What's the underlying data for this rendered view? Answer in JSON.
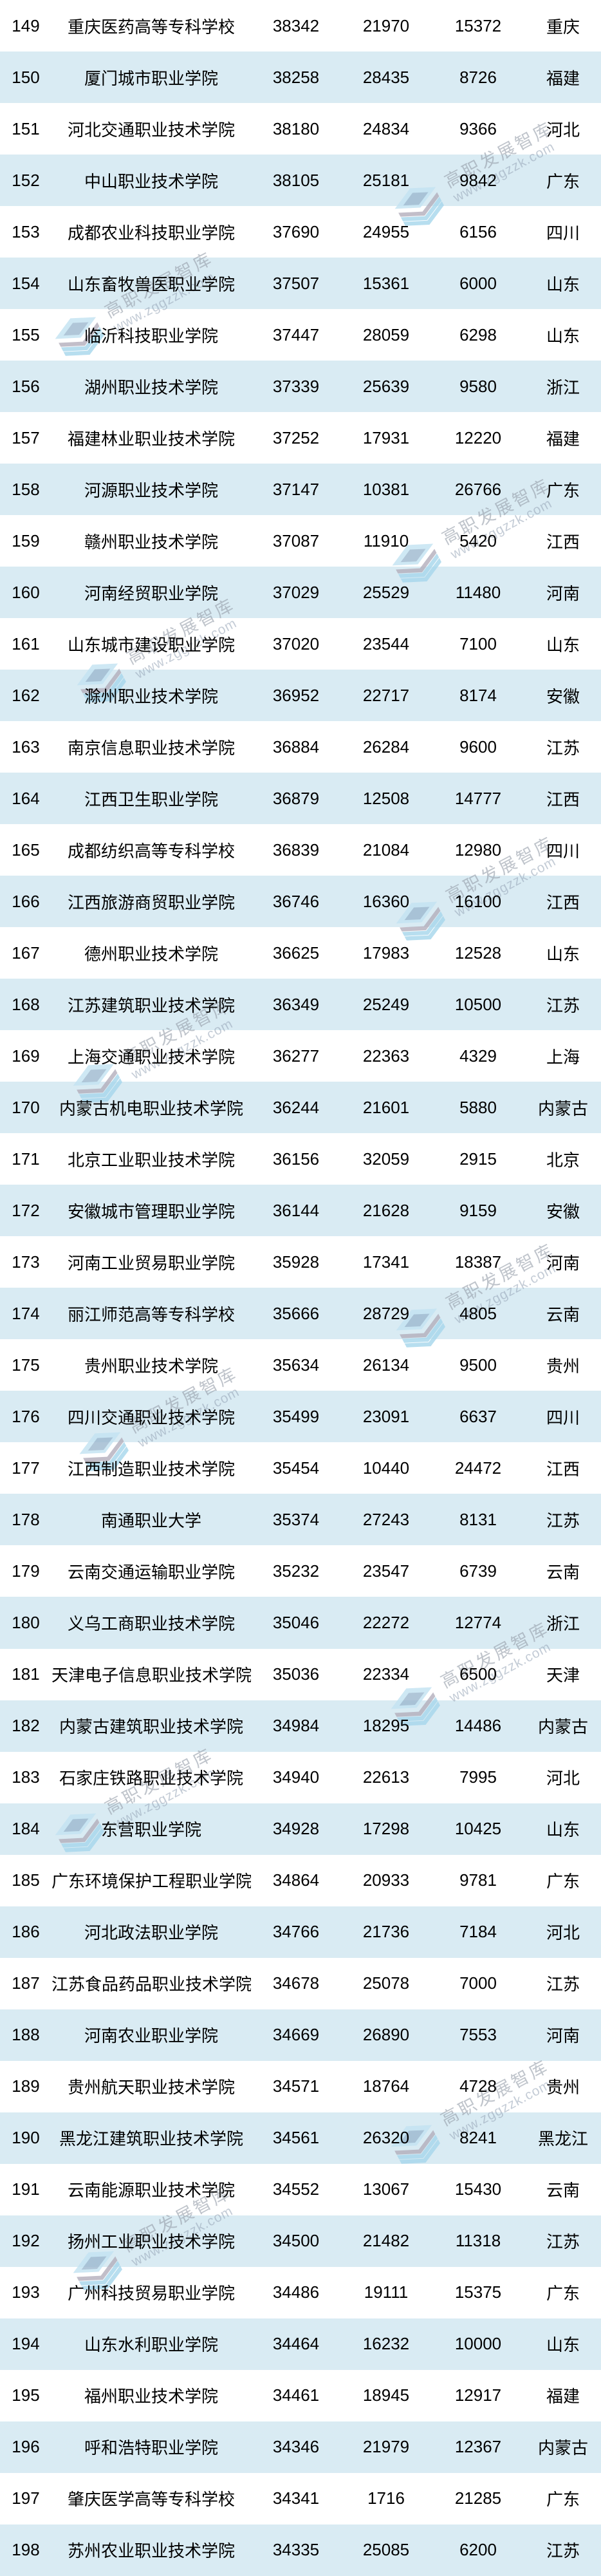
{
  "watermark": {
    "brand": "高职发展智库",
    "url": "www.zggzzk.com"
  },
  "colors": {
    "row_base": "#ffffff",
    "row_alt": "#d9ebf3",
    "text": "#000000",
    "watermark_text": "#949ca8",
    "logo_blue_light": "#c3e3f2",
    "logo_blue": "#a6d6ec",
    "logo_gray": "#b3aebc"
  },
  "table": {
    "column_keys": [
      "rank",
      "school",
      "value1",
      "value2",
      "value3",
      "province"
    ],
    "rows": [
      [
        "149",
        "重庆医药高等专科学校",
        "38342",
        "21970",
        "15372",
        "重庆"
      ],
      [
        "150",
        "厦门城市职业学院",
        "38258",
        "28435",
        "8726",
        "福建"
      ],
      [
        "151",
        "河北交通职业技术学院",
        "38180",
        "24834",
        "9366",
        "河北"
      ],
      [
        "152",
        "中山职业技术学院",
        "38105",
        "25181",
        "9842",
        "广东"
      ],
      [
        "153",
        "成都农业科技职业学院",
        "37690",
        "24955",
        "6156",
        "四川"
      ],
      [
        "154",
        "山东畜牧兽医职业学院",
        "37507",
        "15361",
        "6000",
        "山东"
      ],
      [
        "155",
        "临沂科技职业学院",
        "37447",
        "28059",
        "6298",
        "山东"
      ],
      [
        "156",
        "湖州职业技术学院",
        "37339",
        "25639",
        "9580",
        "浙江"
      ],
      [
        "157",
        "福建林业职业技术学院",
        "37252",
        "17931",
        "12220",
        "福建"
      ],
      [
        "158",
        "河源职业技术学院",
        "37147",
        "10381",
        "26766",
        "广东"
      ],
      [
        "159",
        "赣州职业技术学院",
        "37087",
        "11910",
        "5420",
        "江西"
      ],
      [
        "160",
        "河南经贸职业学院",
        "37029",
        "25529",
        "11480",
        "河南"
      ],
      [
        "161",
        "山东城市建设职业学院",
        "37020",
        "23544",
        "7100",
        "山东"
      ],
      [
        "162",
        "滁州职业技术学院",
        "36952",
        "22717",
        "8174",
        "安徽"
      ],
      [
        "163",
        "南京信息职业技术学院",
        "36884",
        "26284",
        "9600",
        "江苏"
      ],
      [
        "164",
        "江西卫生职业学院",
        "36879",
        "12508",
        "14777",
        "江西"
      ],
      [
        "165",
        "成都纺织高等专科学校",
        "36839",
        "21084",
        "12980",
        "四川"
      ],
      [
        "166",
        "江西旅游商贸职业学院",
        "36746",
        "16360",
        "16100",
        "江西"
      ],
      [
        "167",
        "德州职业技术学院",
        "36625",
        "17983",
        "12528",
        "山东"
      ],
      [
        "168",
        "江苏建筑职业技术学院",
        "36349",
        "25249",
        "10500",
        "江苏"
      ],
      [
        "169",
        "上海交通职业技术学院",
        "36277",
        "22363",
        "4329",
        "上海"
      ],
      [
        "170",
        "内蒙古机电职业技术学院",
        "36244",
        "21601",
        "5880",
        "内蒙古"
      ],
      [
        "171",
        "北京工业职业技术学院",
        "36156",
        "32059",
        "2915",
        "北京"
      ],
      [
        "172",
        "安徽城市管理职业学院",
        "36144",
        "21628",
        "9159",
        "安徽"
      ],
      [
        "173",
        "河南工业贸易职业学院",
        "35928",
        "17341",
        "18387",
        "河南"
      ],
      [
        "174",
        "丽江师范高等专科学校",
        "35666",
        "28729",
        "4805",
        "云南"
      ],
      [
        "175",
        "贵州职业技术学院",
        "35634",
        "26134",
        "9500",
        "贵州"
      ],
      [
        "176",
        "四川交通职业技术学院",
        "35499",
        "23091",
        "6637",
        "四川"
      ],
      [
        "177",
        "江西制造职业技术学院",
        "35454",
        "10440",
        "24472",
        "江西"
      ],
      [
        "178",
        "南通职业大学",
        "35374",
        "27243",
        "8131",
        "江苏"
      ],
      [
        "179",
        "云南交通运输职业学院",
        "35232",
        "23547",
        "6739",
        "云南"
      ],
      [
        "180",
        "义乌工商职业技术学院",
        "35046",
        "22272",
        "12774",
        "浙江"
      ],
      [
        "181",
        "天津电子信息职业技术学院",
        "35036",
        "22334",
        "6500",
        "天津"
      ],
      [
        "182",
        "内蒙古建筑职业技术学院",
        "34984",
        "18295",
        "14486",
        "内蒙古"
      ],
      [
        "183",
        "石家庄铁路职业技术学院",
        "34940",
        "22613",
        "7995",
        "河北"
      ],
      [
        "184",
        "东营职业学院",
        "34928",
        "17298",
        "10425",
        "山东"
      ],
      [
        "185",
        "广东环境保护工程职业学院",
        "34864",
        "20933",
        "9781",
        "广东"
      ],
      [
        "186",
        "河北政法职业学院",
        "34766",
        "21736",
        "7184",
        "河北"
      ],
      [
        "187",
        "江苏食品药品职业技术学院",
        "34678",
        "25078",
        "7000",
        "江苏"
      ],
      [
        "188",
        "河南农业职业学院",
        "34669",
        "26890",
        "7553",
        "河南"
      ],
      [
        "189",
        "贵州航天职业技术学院",
        "34571",
        "18764",
        "4728",
        "贵州"
      ],
      [
        "190",
        "黑龙江建筑职业技术学院",
        "34561",
        "26320",
        "8241",
        "黑龙江"
      ],
      [
        "191",
        "云南能源职业技术学院",
        "34552",
        "13067",
        "15430",
        "云南"
      ],
      [
        "192",
        "扬州工业职业技术学院",
        "34500",
        "21482",
        "11318",
        "江苏"
      ],
      [
        "193",
        "广州科技贸易职业学院",
        "34486",
        "19111",
        "15375",
        "广东"
      ],
      [
        "194",
        "山东水利职业学院",
        "34464",
        "16232",
        "10000",
        "山东"
      ],
      [
        "195",
        "福州职业技术学院",
        "34461",
        "18945",
        "12917",
        "福建"
      ],
      [
        "196",
        "呼和浩特职业学院",
        "34346",
        "21979",
        "12367",
        "内蒙古"
      ],
      [
        "197",
        "肇庆医学高等专科学校",
        "34341",
        "1716",
        "21285",
        "广东"
      ],
      [
        "198",
        "苏州农业职业技术学院",
        "34335",
        "25085",
        "6200",
        "江苏"
      ]
    ]
  }
}
